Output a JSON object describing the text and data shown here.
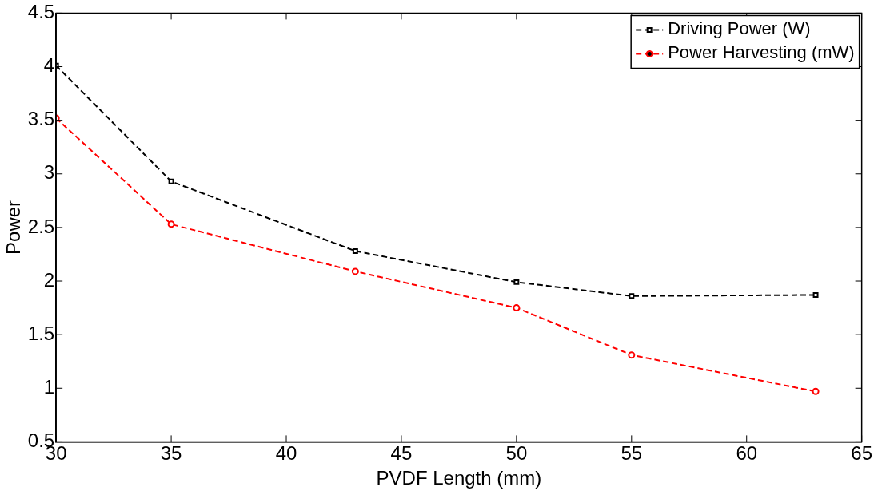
{
  "chart_data": {
    "type": "line",
    "xlabel": "PVDF Length (mm)",
    "ylabel": "Power",
    "x": [
      30,
      35,
      43,
      50,
      55,
      63
    ],
    "series": [
      {
        "name": "Driving Power (W)",
        "color": "#000000",
        "marker": "square",
        "values": [
          4.01,
          2.93,
          2.28,
          1.99,
          1.86,
          1.87
        ]
      },
      {
        "name": "Power Harvesting (mW)",
        "color": "#ff0000",
        "marker": "circle",
        "values": [
          3.52,
          2.53,
          2.09,
          1.75,
          1.31,
          0.97
        ]
      }
    ],
    "xlim": [
      30,
      65
    ],
    "xticks": [
      30,
      35,
      40,
      45,
      50,
      55,
      60,
      65
    ],
    "ylim": [
      0.5,
      4.5
    ],
    "yticks": [
      0.5,
      1,
      1.5,
      2,
      2.5,
      3,
      3.5,
      4,
      4.5
    ],
    "grid": false,
    "legend": "top right",
    "line_style": "dashed"
  }
}
